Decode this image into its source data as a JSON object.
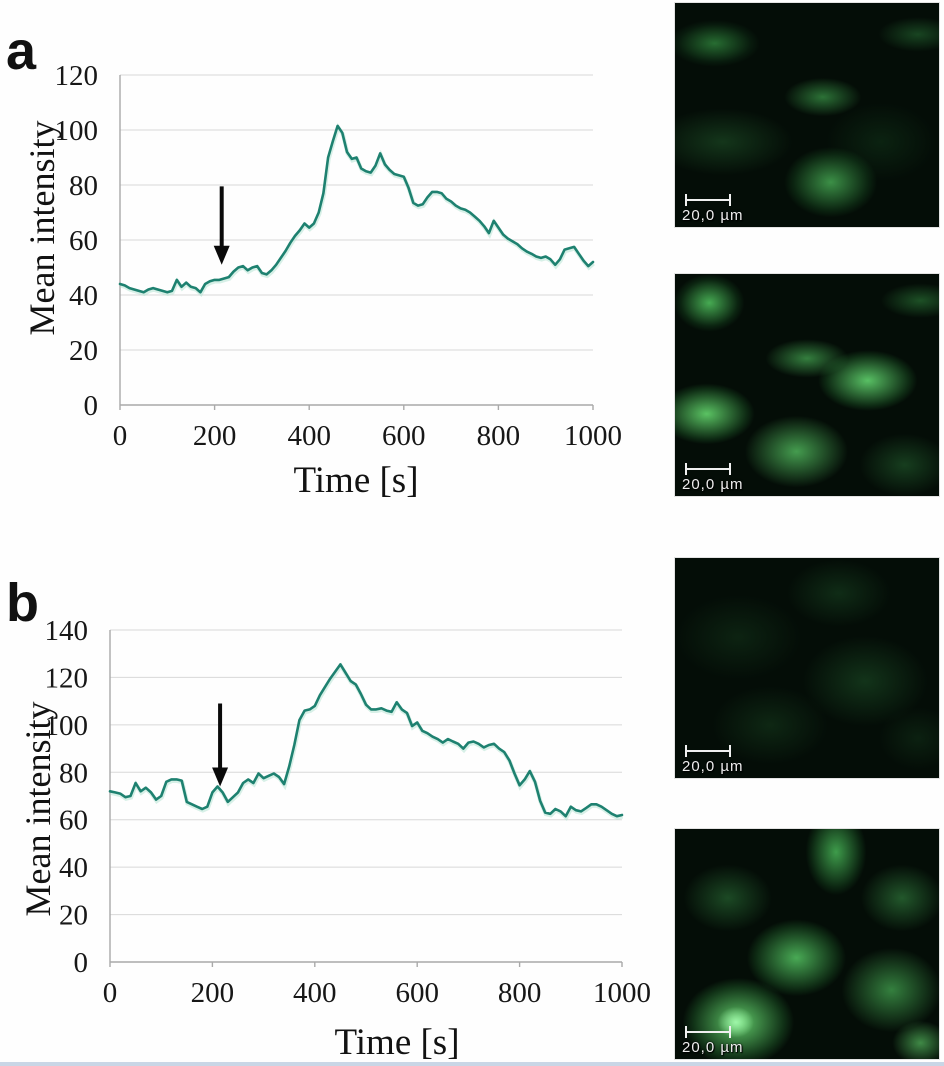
{
  "chart_data": [
    {
      "id": "panel_a",
      "type": "line",
      "panel_label": "a",
      "xlabel": "Time [s]",
      "ylabel": "Mean intensity",
      "xlim": [
        0,
        1000
      ],
      "ylim": [
        0,
        120
      ],
      "x_ticks": [
        0,
        200,
        400,
        600,
        800,
        1000
      ],
      "y_ticks": [
        0,
        20,
        40,
        60,
        80,
        100,
        120
      ],
      "grid": "horizontal",
      "legend": "none",
      "line_color": "#1e8170",
      "arrow_color": "#0a0a0a",
      "x_step": 10,
      "values": [
        44,
        43.5,
        42.5,
        42,
        41.5,
        41,
        42,
        42.5,
        42,
        41.5,
        41,
        41.5,
        45.5,
        43,
        44.5,
        43,
        42.5,
        41,
        44,
        45,
        45.5,
        45.5,
        46,
        46.5,
        48.5,
        50,
        50.5,
        49,
        50,
        50.5,
        48,
        47.5,
        49,
        51,
        53.5,
        56,
        59,
        61.5,
        63.5,
        66,
        64.5,
        66,
        70,
        77,
        90,
        96,
        101.5,
        99,
        92,
        89.5,
        90,
        86,
        85,
        84.5,
        87,
        91.5,
        87.5,
        85.5,
        84,
        83.5,
        83,
        79,
        73.5,
        72.5,
        73,
        75.5,
        77.5,
        77.5,
        77,
        75,
        74,
        72.5,
        71.5,
        71,
        70,
        68.5,
        67,
        65,
        62.5,
        67,
        64.5,
        62,
        60.5,
        59.5,
        58.5,
        57,
        55.8,
        55,
        54,
        53.5,
        54,
        53,
        51,
        53,
        56.5,
        57,
        57.5,
        55,
        52.5,
        50.5,
        52
      ],
      "annotation": {
        "type": "arrow",
        "x": 215,
        "y_from": 79.5,
        "y_to": 51
      }
    },
    {
      "id": "panel_b",
      "type": "line",
      "panel_label": "b",
      "xlabel": "Time [s]",
      "ylabel": "Mean intensity",
      "xlim": [
        0,
        1000
      ],
      "ylim": [
        0,
        140
      ],
      "x_ticks": [
        0,
        200,
        400,
        600,
        800,
        1000
      ],
      "y_ticks": [
        0,
        20,
        40,
        60,
        80,
        100,
        120,
        140
      ],
      "grid": "horizontal",
      "legend": "none",
      "line_color": "#1e8170",
      "arrow_color": "#0a0a0a",
      "x_step": 10,
      "values": [
        72,
        71.5,
        71,
        69.5,
        70,
        75.5,
        72,
        73.5,
        71.5,
        68.5,
        70,
        76,
        77,
        77,
        76.5,
        67.5,
        66.5,
        65.5,
        64.5,
        65.5,
        71.5,
        74,
        71.5,
        67.5,
        69.5,
        71.5,
        75.5,
        77,
        75.5,
        79.5,
        77.5,
        78.5,
        79.5,
        78,
        75,
        82.5,
        91.5,
        102,
        106,
        106.5,
        108,
        112.5,
        116,
        119.5,
        122.5,
        125.5,
        122,
        118.5,
        117,
        113,
        108.5,
        106.5,
        106.5,
        107,
        106,
        105.5,
        109.5,
        106.5,
        105,
        99.5,
        101,
        97.5,
        96.5,
        95,
        94,
        92.5,
        94,
        93,
        92,
        90,
        92.5,
        93,
        92,
        90.5,
        91.5,
        92,
        90,
        88.5,
        85,
        79.5,
        74.5,
        77,
        80.5,
        76,
        68,
        63,
        62.5,
        64.5,
        63.5,
        61.5,
        65.5,
        64,
        63.5,
        65,
        66.5,
        66.5,
        65.5,
        64,
        62.5,
        61.5,
        62
      ],
      "annotation": {
        "type": "arrow",
        "x": 215,
        "y_from": 109,
        "y_to": 74
      }
    }
  ],
  "microscopy": {
    "panels": [
      {
        "panel": "a",
        "position": "top",
        "scale_bar": "20,0 µm"
      },
      {
        "panel": "a",
        "position": "bottom",
        "scale_bar": "20,0 µm"
      },
      {
        "panel": "b",
        "position": "top",
        "scale_bar": "20,0 µm"
      },
      {
        "panel": "b",
        "position": "bottom",
        "scale_bar": "20,0 µm"
      }
    ]
  }
}
